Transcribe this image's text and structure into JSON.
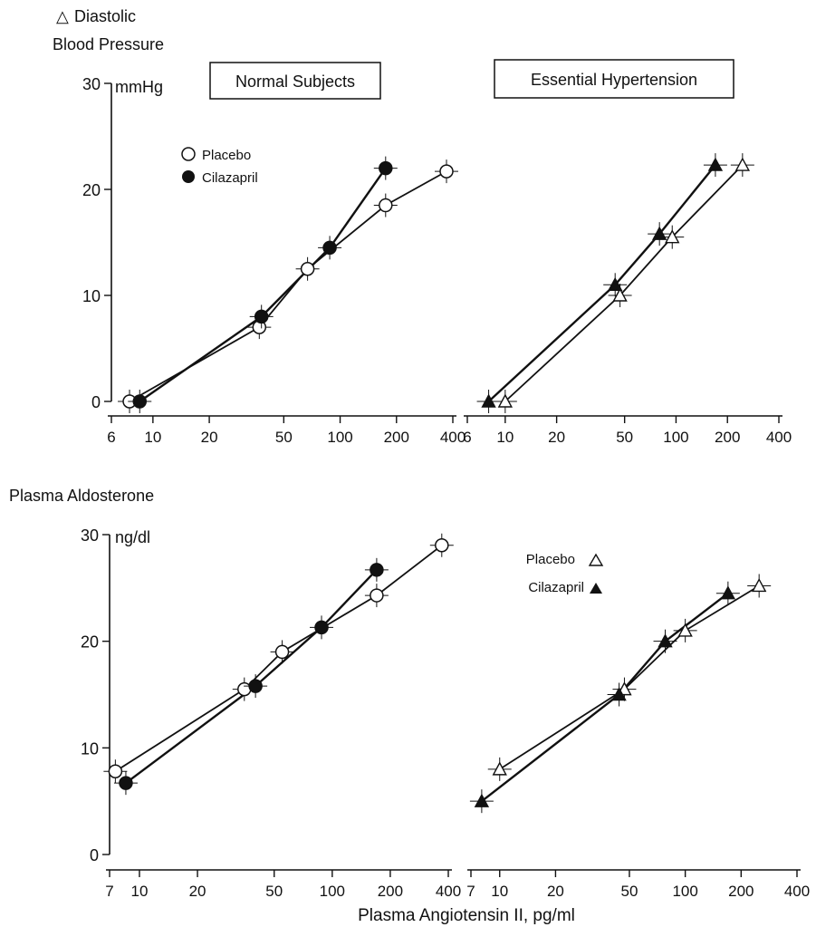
{
  "figure": {
    "top_label_symbol": "△",
    "top_label_line1": "Diastolic",
    "top_label_line2": "Blood Pressure",
    "top_unit": "mmHg",
    "bottom_label": "Plasma Aldosterone",
    "bottom_unit": "ng/dl",
    "panel_title_left": "Normal Subjects",
    "panel_title_right": "Essential Hypertension",
    "legend_placebo": "Placebo",
    "legend_cilazapril": "Cilazapril",
    "x_axis_label": "Plasma Angiotensin II, pg/ml"
  },
  "chart_data": [
    {
      "id": "bp-normal",
      "type": "scatter",
      "xscale": "log",
      "xlim": [
        6,
        400
      ],
      "ylim": [
        0,
        30
      ],
      "yticks": [
        0,
        10,
        20,
        30
      ],
      "xticks": [
        6,
        10,
        20,
        50,
        100,
        200,
        400
      ],
      "title": "Normal Subjects",
      "series": [
        {
          "name": "Placebo",
          "marker": "open-circle",
          "x": [
            7.5,
            37,
            67,
            175,
            370
          ],
          "y": [
            0,
            7,
            12.5,
            18.5,
            21.7
          ]
        },
        {
          "name": "Cilazapril",
          "marker": "filled-circle",
          "x": [
            8.5,
            38,
            88,
            175
          ],
          "y": [
            0,
            8,
            14.5,
            22
          ]
        }
      ]
    },
    {
      "id": "bp-hyper",
      "type": "scatter",
      "xscale": "log",
      "xlim": [
        6,
        400
      ],
      "ylim": [
        0,
        30
      ],
      "yticks": [
        0,
        10,
        20,
        30
      ],
      "xticks": [
        6,
        10,
        20,
        50,
        100,
        200,
        400
      ],
      "title": "Essential Hypertension",
      "series": [
        {
          "name": "Placebo",
          "marker": "open-triangle",
          "x": [
            10,
            47,
            95,
            245
          ],
          "y": [
            0,
            10,
            15.5,
            22.3
          ]
        },
        {
          "name": "Cilazapril",
          "marker": "filled-triangle",
          "x": [
            8,
            44,
            80,
            170
          ],
          "y": [
            0,
            11,
            15.8,
            22.3
          ]
        }
      ]
    },
    {
      "id": "aldo-normal",
      "type": "scatter",
      "xscale": "log",
      "xlim": [
        7,
        400
      ],
      "ylim": [
        0,
        30
      ],
      "yticks": [
        0,
        10,
        20,
        30
      ],
      "xticks": [
        7,
        10,
        20,
        50,
        100,
        200,
        400
      ],
      "series": [
        {
          "name": "Placebo",
          "marker": "open-circle",
          "x": [
            7.5,
            35,
            55,
            170,
            370
          ],
          "y": [
            7.8,
            15.5,
            19,
            24.3,
            29
          ]
        },
        {
          "name": "Cilazapril",
          "marker": "filled-circle",
          "x": [
            8.5,
            40,
            88,
            170
          ],
          "y": [
            6.7,
            15.8,
            21.3,
            26.7
          ]
        }
      ]
    },
    {
      "id": "aldo-hyper",
      "type": "scatter",
      "xscale": "log",
      "xlim": [
        7,
        400
      ],
      "ylim": [
        0,
        30
      ],
      "yticks": [
        0,
        10,
        20,
        30
      ],
      "xticks": [
        7,
        10,
        20,
        50,
        100,
        200,
        400
      ],
      "series": [
        {
          "name": "Placebo",
          "marker": "open-triangle",
          "x": [
            10,
            47,
            100,
            250
          ],
          "y": [
            8,
            15.5,
            21,
            25.2
          ]
        },
        {
          "name": "Cilazapril",
          "marker": "filled-triangle",
          "x": [
            8,
            44,
            78,
            170
          ],
          "y": [
            5,
            15,
            20,
            24.5
          ]
        }
      ]
    }
  ]
}
